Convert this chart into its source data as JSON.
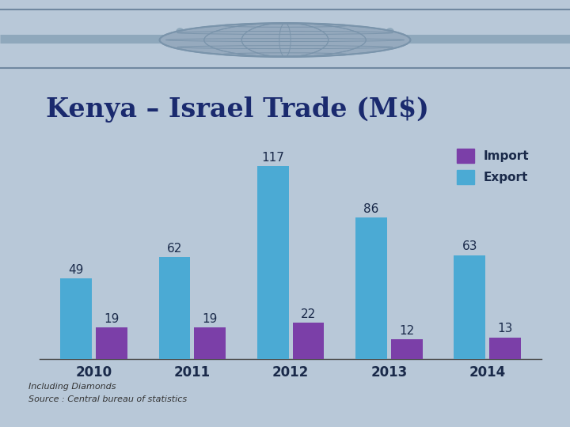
{
  "title": "Kenya – Israel Trade (M$)",
  "years": [
    "2010",
    "2011",
    "2012",
    "2013",
    "2014"
  ],
  "export_values": [
    49,
    62,
    117,
    86,
    63
  ],
  "import_values": [
    19,
    19,
    22,
    12,
    13
  ],
  "export_color": "#4BAAD4",
  "import_color": "#7B3FA8",
  "background_color": "#B8C8D8",
  "header_bg_color": "#A8BBCC",
  "header_stripe_color": "#8FA8BC",
  "globe_color": "#96AABE",
  "globe_line_color": "#7A94AB",
  "title_color": "#1A2A6E",
  "title_fontsize": 24,
  "bar_label_fontsize": 11,
  "legend_fontsize": 11,
  "xtick_fontsize": 12,
  "footer_text1": "Including Diamonds",
  "footer_text2": "Source : Central bureau of statistics",
  "footer_fontsize": 8
}
